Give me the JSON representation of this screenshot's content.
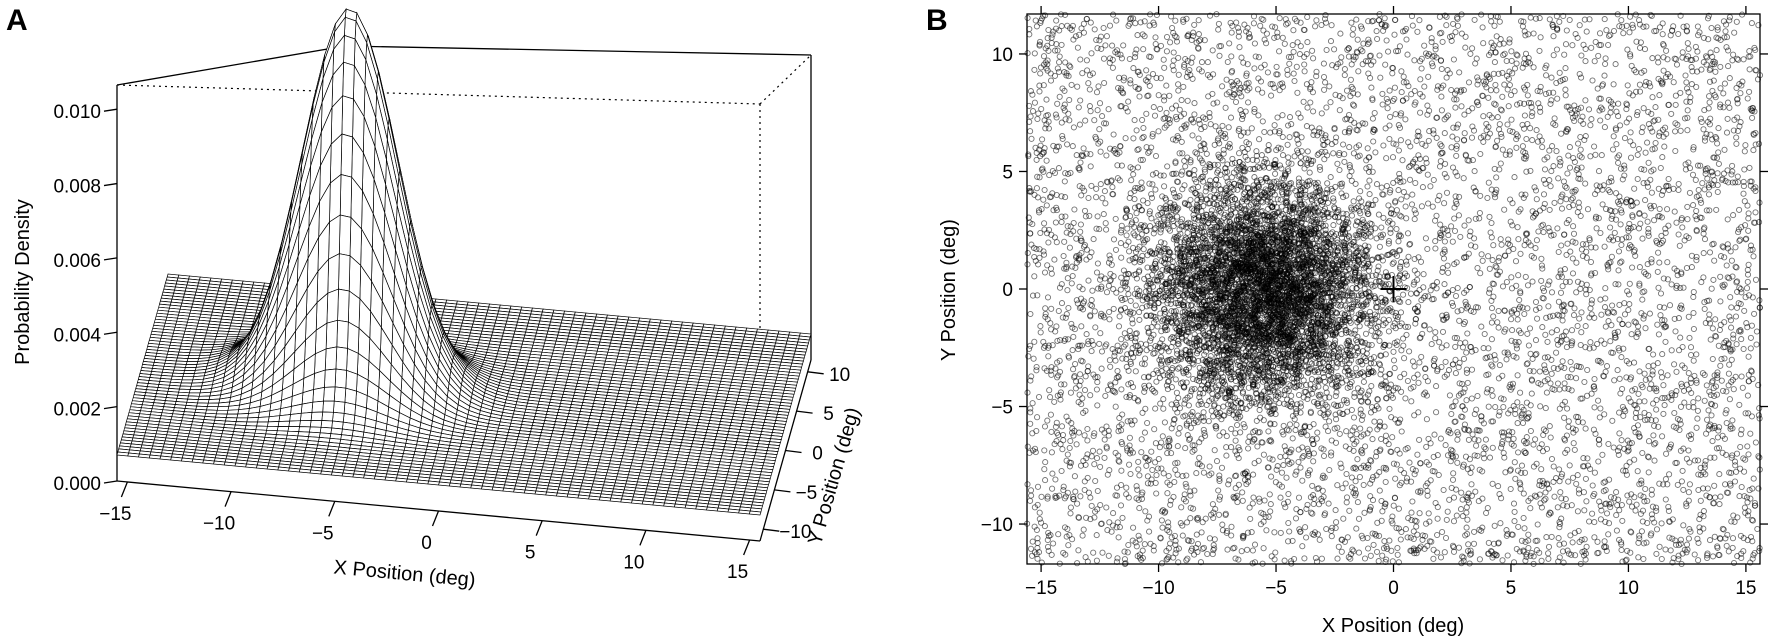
{
  "chart_data": [
    {
      "panel_label": "A",
      "type": "surface",
      "distribution": {
        "family": "bivariate-normal-plus-uniform",
        "center": [
          -5.5,
          0
        ],
        "sd": 2.3,
        "peak_density": 0.0108,
        "floor_density": 0.0007
      },
      "xlabel": "X Position (deg)",
      "ylabel": "Y Position (deg)",
      "zlabel": "Probability Density",
      "xlim": [
        -15.5,
        15.5
      ],
      "ylim": [
        -11.5,
        11.5
      ],
      "zlim": [
        0,
        0.011
      ],
      "x_ticks": [
        "−15",
        "−10",
        "−5",
        "0",
        "5",
        "10",
        "15"
      ],
      "y_ticks": [
        "−10",
        "−5",
        "0",
        "5",
        "10"
      ],
      "z_ticks": [
        "0.000",
        "0.002",
        "0.004",
        "0.006",
        "0.008",
        "0.010"
      ]
    },
    {
      "panel_label": "B",
      "type": "scatter",
      "marker": "open-circle",
      "distribution": {
        "cluster_center": [
          -5.5,
          0
        ],
        "cluster_sd": 2.3,
        "cluster_count": 5200,
        "uniform_count": 5800
      },
      "fixation_cross": [
        0,
        0
      ],
      "xlabel": "X Position (deg)",
      "ylabel": "Y Position (deg)",
      "xlim": [
        -15.6,
        15.6
      ],
      "ylim": [
        -11.7,
        11.7
      ],
      "x_ticks": [
        "−15",
        "−10",
        "−5",
        "0",
        "5",
        "10",
        "15"
      ],
      "y_ticks": [
        "−10",
        "−5",
        "0",
        "5",
        "10"
      ]
    }
  ]
}
